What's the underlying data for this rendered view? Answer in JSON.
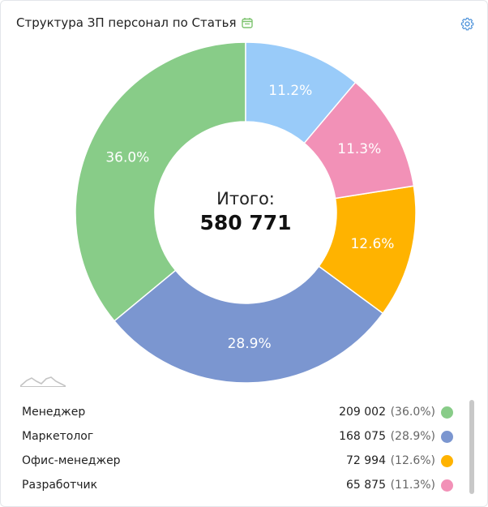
{
  "header": {
    "title": "Структура ЗП персонал по Статья",
    "title_icon": "calendar-icon",
    "settings_icon": "gear-icon"
  },
  "center": {
    "label": "Итого:",
    "value": "580 771"
  },
  "chart_data": {
    "type": "pie",
    "variant": "donut",
    "total": 580771,
    "slices": [
      {
        "name": "Менеджер",
        "value": 209002,
        "pct_label": "36.0%",
        "color": "#88CC88"
      },
      {
        "name": "Маркетолог",
        "value": 168075,
        "pct_label": "28.9%",
        "color": "#7B96D0"
      },
      {
        "name": "Офис-менеджер",
        "value": 72994,
        "pct_label": "12.6%",
        "color": "#FFB300"
      },
      {
        "name": "Разработчик",
        "value": 65875,
        "pct_label": "11.3%",
        "color": "#F291B7"
      },
      {
        "name": "",
        "value": 64825,
        "pct_label": "11.2%",
        "color": "#99CBF9"
      }
    ]
  },
  "legend": {
    "items": [
      {
        "name": "Менеджер",
        "value": "209 002",
        "pct": "(36.0%)",
        "color": "#88CC88"
      },
      {
        "name": "Маркетолог",
        "value": "168 075",
        "pct": "(28.9%)",
        "color": "#7B96D0"
      },
      {
        "name": "Офис-менеджер",
        "value": "72 994",
        "pct": "(12.6%)",
        "color": "#FFB300"
      },
      {
        "name": "Разработчик",
        "value": "65 875",
        "pct": "(11.3%)",
        "color": "#F291B7"
      }
    ]
  }
}
